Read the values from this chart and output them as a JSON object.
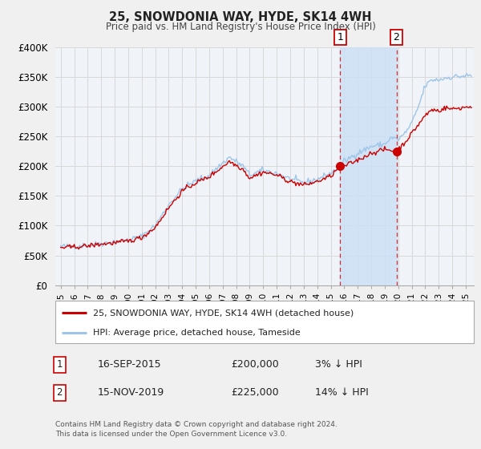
{
  "title": "25, SNOWDONIA WAY, HYDE, SK14 4WH",
  "subtitle": "Price paid vs. HM Land Registry's House Price Index (HPI)",
  "ylim": [
    0,
    400000
  ],
  "yticks": [
    0,
    50000,
    100000,
    150000,
    200000,
    250000,
    300000,
    350000,
    400000
  ],
  "ytick_labels": [
    "£0",
    "£50K",
    "£100K",
    "£150K",
    "£200K",
    "£250K",
    "£300K",
    "£350K",
    "£400K"
  ],
  "xlim_start": 1994.6,
  "xlim_end": 2025.6,
  "xticks": [
    1995,
    1996,
    1997,
    1998,
    1999,
    2000,
    2001,
    2002,
    2003,
    2004,
    2005,
    2006,
    2007,
    2008,
    2009,
    2010,
    2011,
    2012,
    2013,
    2014,
    2015,
    2016,
    2017,
    2018,
    2019,
    2020,
    2021,
    2022,
    2023,
    2024,
    2025
  ],
  "hpi_color": "#9ec5e8",
  "price_color": "#cc0000",
  "fig_bg": "#f0f0f0",
  "plot_bg": "#f0f4f8",
  "grid_color": "#d8d8d8",
  "shade_color": "#cce0f5",
  "sale1_x": 2015.71,
  "sale1_y": 200000,
  "sale2_x": 2019.87,
  "sale2_y": 225000,
  "legend_price_label": "25, SNOWDONIA WAY, HYDE, SK14 4WH (detached house)",
  "legend_hpi_label": "HPI: Average price, detached house, Tameside",
  "annotation1_num": "1",
  "annotation1_date": "16-SEP-2015",
  "annotation1_price": "£200,000",
  "annotation1_pct": "3% ↓ HPI",
  "annotation2_num": "2",
  "annotation2_date": "15-NOV-2019",
  "annotation2_price": "£225,000",
  "annotation2_pct": "14% ↓ HPI",
  "footer": "Contains HM Land Registry data © Crown copyright and database right 2024.\nThis data is licensed under the Open Government Licence v3.0."
}
